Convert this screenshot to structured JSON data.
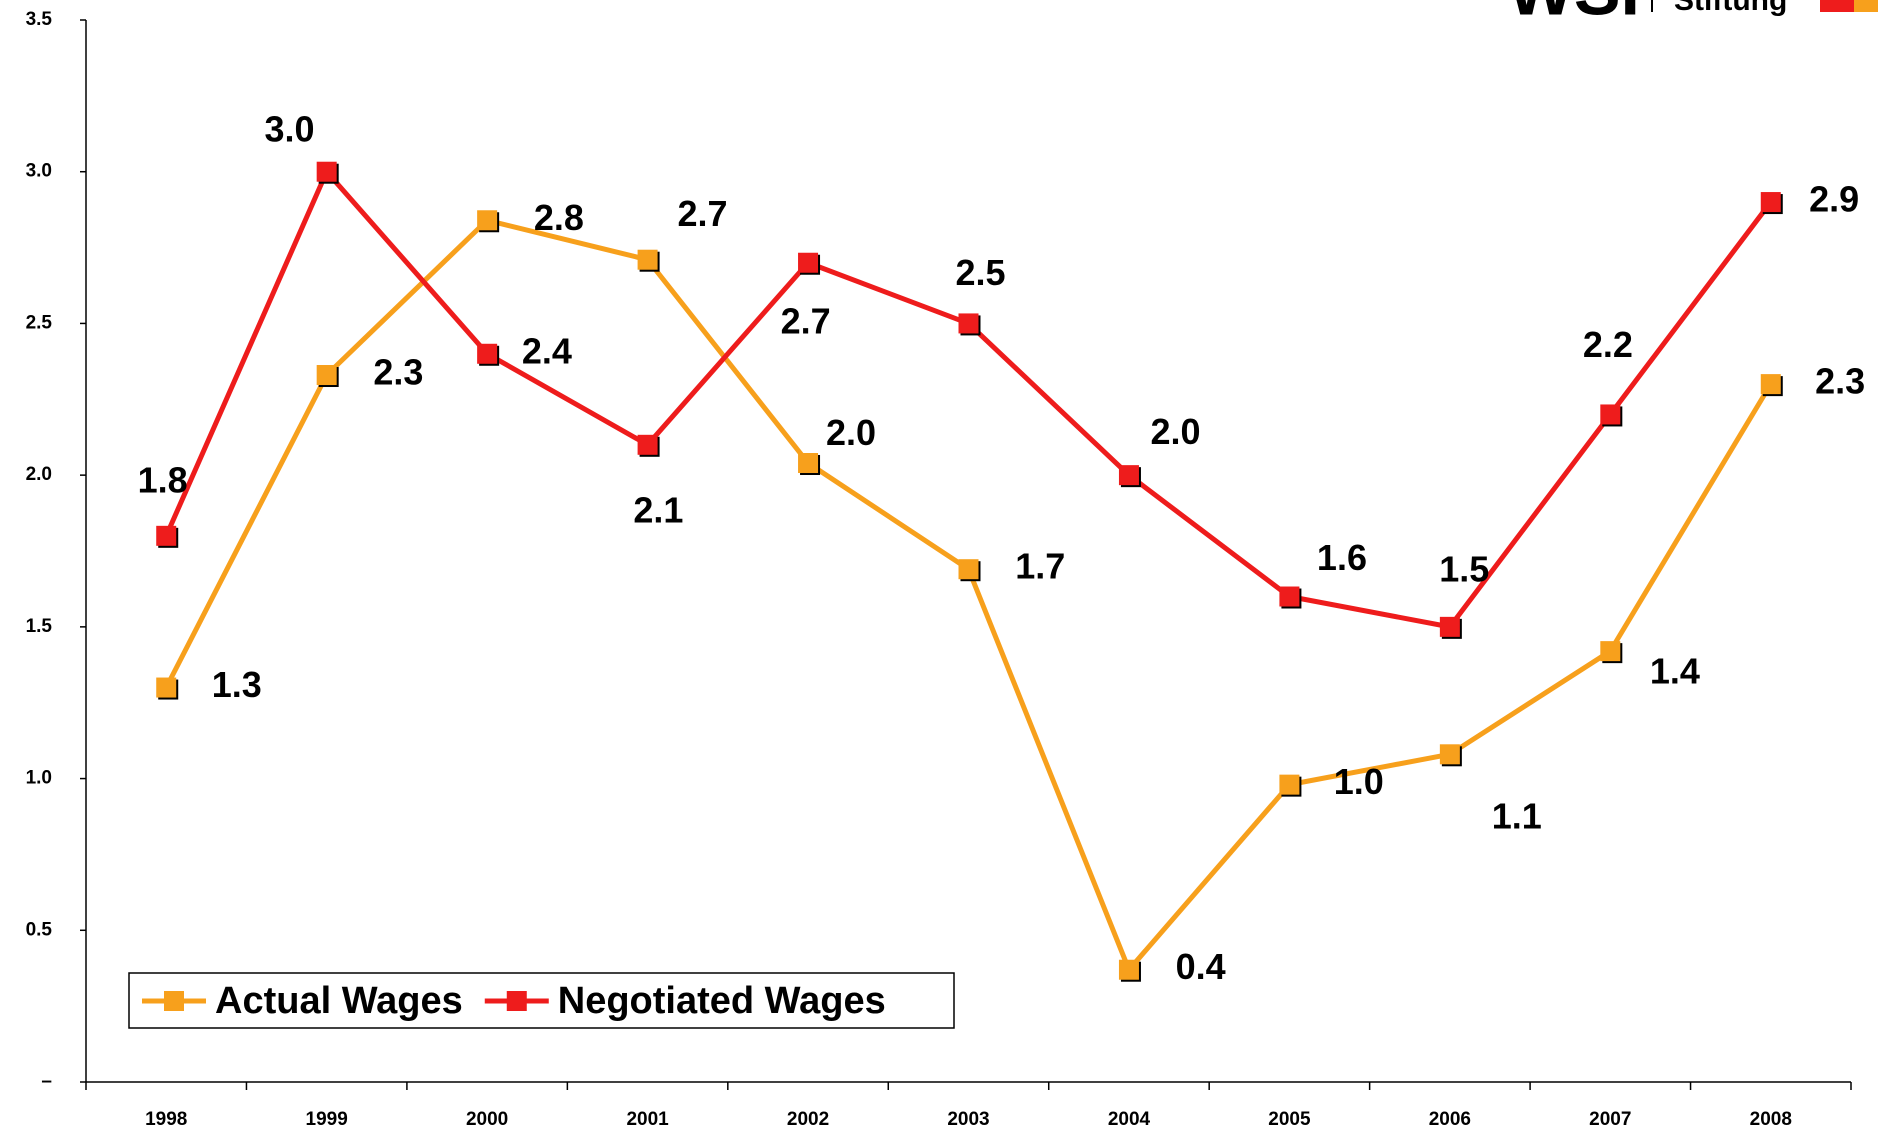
{
  "chart_data": {
    "type": "line",
    "logo": "WSI",
    "logo_sub": "Stiftung",
    "categories": [
      "1998",
      "1999",
      "2000",
      "2001",
      "2002",
      "2003",
      "2004",
      "2005",
      "2006",
      "2007",
      "2008"
    ],
    "series": [
      {
        "name": "Actual Wages",
        "color": "#f7a01c",
        "values": [
          1.3,
          2.33,
          2.84,
          2.71,
          2.04,
          1.69,
          0.37,
          0.98,
          1.08,
          1.42,
          2.3
        ],
        "value_labels": [
          "1.3",
          "2.3",
          "2.8",
          "2.7",
          "2.0",
          "1.7",
          "0.4",
          "1.0",
          "1.1",
          "1.4",
          "2.3"
        ]
      },
      {
        "name": "Negotiated Wages",
        "color": "#ee1c1c",
        "values": [
          1.8,
          3.0,
          2.4,
          2.1,
          2.7,
          2.5,
          2.0,
          1.6,
          1.5,
          2.2,
          2.9
        ],
        "value_labels": [
          "1.8",
          "3.0",
          "2.4",
          "2.1",
          "2.7",
          "2.5",
          "2.0",
          "1.6",
          "1.5",
          "2.2",
          "2.9"
        ]
      }
    ],
    "ylim": [
      0,
      3.5
    ],
    "yticks": [
      {
        "value": 0,
        "label": "–"
      },
      0.5,
      {
        "value": 1,
        "label": "1.0"
      },
      1.5,
      {
        "value": 2,
        "label": "2.0"
      },
      2.5,
      {
        "value": 3,
        "label": "3.0"
      },
      3.5
    ],
    "grid": false,
    "legend": "lower left"
  }
}
